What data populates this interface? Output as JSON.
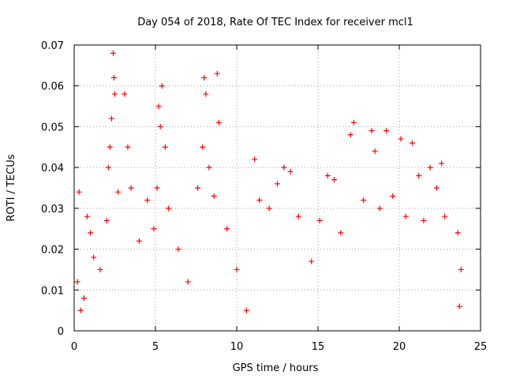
{
  "chart_data": {
    "type": "scatter",
    "title": "Day 054 of 2018, Rate Of TEC Index for receiver mcl1",
    "xlabel": "GPS time / hours",
    "ylabel": "ROTI / TECUs",
    "xlim": [
      0,
      25
    ],
    "ylim": [
      0,
      0.07
    ],
    "xticks": [
      0,
      5,
      10,
      15,
      20,
      25
    ],
    "xtick_labels": [
      "0",
      "5",
      "10",
      "15",
      "20",
      "25"
    ],
    "yticks": [
      0,
      0.01,
      0.02,
      0.03,
      0.04,
      0.05,
      0.06,
      0.07
    ],
    "ytick_labels": [
      "0",
      "0.01",
      "0.02",
      "0.03",
      "0.04",
      "0.05",
      "0.06",
      "0.07"
    ],
    "grid": true,
    "marker": "plus",
    "color": "#ff0000",
    "series": [
      {
        "name": "ROTI",
        "points": [
          [
            0.2,
            0.012
          ],
          [
            0.3,
            0.034
          ],
          [
            0.4,
            0.005
          ],
          [
            0.6,
            0.008
          ],
          [
            0.8,
            0.028
          ],
          [
            1.0,
            0.024
          ],
          [
            1.2,
            0.018
          ],
          [
            1.6,
            0.015
          ],
          [
            2.0,
            0.027
          ],
          [
            2.1,
            0.04
          ],
          [
            2.2,
            0.045
          ],
          [
            2.3,
            0.052
          ],
          [
            2.4,
            0.068
          ],
          [
            2.45,
            0.062
          ],
          [
            2.5,
            0.058
          ],
          [
            2.7,
            0.034
          ],
          [
            3.1,
            0.058
          ],
          [
            3.3,
            0.045
          ],
          [
            3.5,
            0.035
          ],
          [
            4.0,
            0.022
          ],
          [
            4.5,
            0.032
          ],
          [
            4.9,
            0.025
          ],
          [
            5.1,
            0.035
          ],
          [
            5.2,
            0.055
          ],
          [
            5.3,
            0.05
          ],
          [
            5.4,
            0.06
          ],
          [
            5.6,
            0.045
          ],
          [
            5.8,
            0.03
          ],
          [
            6.4,
            0.02
          ],
          [
            7.0,
            0.012
          ],
          [
            7.6,
            0.035
          ],
          [
            7.9,
            0.045
          ],
          [
            8.0,
            0.062
          ],
          [
            8.1,
            0.058
          ],
          [
            8.3,
            0.04
          ],
          [
            8.6,
            0.033
          ],
          [
            8.8,
            0.063
          ],
          [
            8.9,
            0.051
          ],
          [
            9.4,
            0.025
          ],
          [
            10.0,
            0.015
          ],
          [
            10.6,
            0.005
          ],
          [
            11.1,
            0.042
          ],
          [
            11.4,
            0.032
          ],
          [
            12.0,
            0.03
          ],
          [
            12.5,
            0.036
          ],
          [
            12.9,
            0.04
          ],
          [
            13.3,
            0.039
          ],
          [
            13.8,
            0.028
          ],
          [
            14.6,
            0.017
          ],
          [
            15.1,
            0.027
          ],
          [
            15.6,
            0.038
          ],
          [
            16.0,
            0.037
          ],
          [
            16.4,
            0.024
          ],
          [
            17.0,
            0.048
          ],
          [
            17.2,
            0.051
          ],
          [
            17.8,
            0.032
          ],
          [
            18.3,
            0.049
          ],
          [
            18.5,
            0.044
          ],
          [
            18.8,
            0.03
          ],
          [
            19.2,
            0.049
          ],
          [
            19.6,
            0.033
          ],
          [
            20.1,
            0.047
          ],
          [
            20.4,
            0.028
          ],
          [
            20.8,
            0.046
          ],
          [
            21.2,
            0.038
          ],
          [
            21.5,
            0.027
          ],
          [
            21.9,
            0.04
          ],
          [
            22.3,
            0.035
          ],
          [
            22.6,
            0.041
          ],
          [
            22.8,
            0.028
          ],
          [
            23.6,
            0.024
          ],
          [
            23.8,
            0.015
          ],
          [
            23.7,
            0.006
          ]
        ]
      }
    ]
  }
}
